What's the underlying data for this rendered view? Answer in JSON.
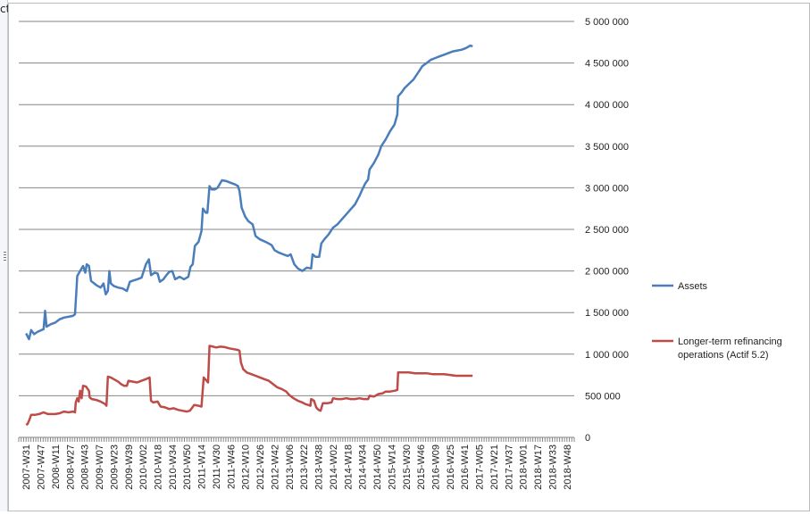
{
  "corner_glyph": "ct",
  "chart_data": {
    "type": "line",
    "title": "",
    "xlabel": "",
    "ylabel": "",
    "ylim": [
      0,
      5000000
    ],
    "yticks": [
      0,
      500000,
      1000000,
      1500000,
      2000000,
      2500000,
      3000000,
      3500000,
      4000000,
      4500000,
      5000000
    ],
    "ytick_labels": [
      "0",
      "500 000",
      "1 000 000",
      "1 500 000",
      "2 000 000",
      "2 500 000",
      "3 000 000",
      "3 500 000",
      "4 000 000",
      "4 500 000",
      "5 000 000"
    ],
    "y_axis_side": "right",
    "grid": "horizontal",
    "legend_position": "right",
    "x_categories": [
      "2007-W31",
      "2007-W47",
      "2008-W11",
      "2008-W27",
      "2008-W43",
      "2009-W07",
      "2009-W23",
      "2009-W39",
      "2010-W02",
      "2010-W18",
      "2010-W34",
      "2010-W50",
      "2011-W14",
      "2011-W30",
      "2011-W46",
      "2012-W10",
      "2012-W26",
      "2012-W42",
      "2013-W06",
      "2013-W22",
      "2013-W38",
      "2014-W02",
      "2014-W18",
      "2014-W34",
      "2014-W50",
      "2015-W14",
      "2015-W30",
      "2015-W46",
      "2016-W09",
      "2016-W25",
      "2016-W41",
      "2017-W05",
      "2017-W21",
      "2017-W37",
      "2018-W01",
      "2018-W17",
      "2018-W33",
      "2018-W48"
    ],
    "series": [
      {
        "name": "Assets",
        "color": "#4a7ebb",
        "points": [
          [
            0,
            1250000
          ],
          [
            0.2,
            1180000
          ],
          [
            0.35,
            1290000
          ],
          [
            0.55,
            1240000
          ],
          [
            0.8,
            1270000
          ],
          [
            1.2,
            1300000
          ],
          [
            1.3,
            1520000
          ],
          [
            1.4,
            1330000
          ],
          [
            1.7,
            1360000
          ],
          [
            2.0,
            1380000
          ],
          [
            2.3,
            1420000
          ],
          [
            2.6,
            1440000
          ],
          [
            2.9,
            1450000
          ],
          [
            3.2,
            1460000
          ],
          [
            3.35,
            1480000
          ],
          [
            3.5,
            1940000
          ],
          [
            3.7,
            2000000
          ],
          [
            3.9,
            2060000
          ],
          [
            4.05,
            1980000
          ],
          [
            4.15,
            2080000
          ],
          [
            4.3,
            2060000
          ],
          [
            4.45,
            1880000
          ],
          [
            4.8,
            1830000
          ],
          [
            5.1,
            1800000
          ],
          [
            5.3,
            1850000
          ],
          [
            5.45,
            1720000
          ],
          [
            5.6,
            1760000
          ],
          [
            5.7,
            2000000
          ],
          [
            5.8,
            1850000
          ],
          [
            6.0,
            1820000
          ],
          [
            6.3,
            1800000
          ],
          [
            6.6,
            1790000
          ],
          [
            6.9,
            1760000
          ],
          [
            7.1,
            1870000
          ],
          [
            7.4,
            1890000
          ],
          [
            7.6,
            1900000
          ],
          [
            7.9,
            1920000
          ],
          [
            8.2,
            2080000
          ],
          [
            8.4,
            2140000
          ],
          [
            8.55,
            1950000
          ],
          [
            8.8,
            1980000
          ],
          [
            9.0,
            1970000
          ],
          [
            9.15,
            1870000
          ],
          [
            9.4,
            1900000
          ],
          [
            9.6,
            1950000
          ],
          [
            9.8,
            1990000
          ],
          [
            10.0,
            2000000
          ],
          [
            10.2,
            1900000
          ],
          [
            10.5,
            1930000
          ],
          [
            10.8,
            1900000
          ],
          [
            11.1,
            1930000
          ],
          [
            11.25,
            2050000
          ],
          [
            11.4,
            2080000
          ],
          [
            11.55,
            2300000
          ],
          [
            11.8,
            2350000
          ],
          [
            12.0,
            2480000
          ],
          [
            12.1,
            2750000
          ],
          [
            12.3,
            2700000
          ],
          [
            12.4,
            2700000
          ],
          [
            12.55,
            3020000
          ],
          [
            12.7,
            2980000
          ],
          [
            12.9,
            2980000
          ],
          [
            13.1,
            3000000
          ],
          [
            13.4,
            3090000
          ],
          [
            13.7,
            3080000
          ],
          [
            14.0,
            3060000
          ],
          [
            14.3,
            3040000
          ],
          [
            14.5,
            3020000
          ],
          [
            14.6,
            2960000
          ],
          [
            14.75,
            2760000
          ],
          [
            15.0,
            2650000
          ],
          [
            15.2,
            2600000
          ],
          [
            15.5,
            2560000
          ],
          [
            15.7,
            2420000
          ],
          [
            16.0,
            2380000
          ],
          [
            16.5,
            2340000
          ],
          [
            16.8,
            2310000
          ],
          [
            17.0,
            2250000
          ],
          [
            17.3,
            2220000
          ],
          [
            17.6,
            2200000
          ],
          [
            17.9,
            2180000
          ],
          [
            18.1,
            2200000
          ],
          [
            18.35,
            2080000
          ],
          [
            18.6,
            2030000
          ],
          [
            18.9,
            2000000
          ],
          [
            19.2,
            2040000
          ],
          [
            19.5,
            2030000
          ],
          [
            19.6,
            2200000
          ],
          [
            19.8,
            2170000
          ],
          [
            20.05,
            2170000
          ],
          [
            20.2,
            2330000
          ],
          [
            20.4,
            2380000
          ],
          [
            20.7,
            2440000
          ],
          [
            21.0,
            2520000
          ],
          [
            21.3,
            2560000
          ],
          [
            21.6,
            2620000
          ],
          [
            21.9,
            2680000
          ],
          [
            22.2,
            2740000
          ],
          [
            22.5,
            2800000
          ],
          [
            22.8,
            2900000
          ],
          [
            23.0,
            2980000
          ],
          [
            23.2,
            3050000
          ],
          [
            23.4,
            3100000
          ],
          [
            23.5,
            3220000
          ],
          [
            23.8,
            3300000
          ],
          [
            24.1,
            3400000
          ],
          [
            24.3,
            3500000
          ],
          [
            24.6,
            3580000
          ],
          [
            24.9,
            3680000
          ],
          [
            25.2,
            3760000
          ],
          [
            25.4,
            3880000
          ],
          [
            25.45,
            4100000
          ],
          [
            25.7,
            4150000
          ],
          [
            25.9,
            4200000
          ],
          [
            26.2,
            4250000
          ],
          [
            26.5,
            4300000
          ],
          [
            26.8,
            4380000
          ],
          [
            27.1,
            4460000
          ],
          [
            27.4,
            4500000
          ],
          [
            27.7,
            4540000
          ],
          [
            28.0,
            4560000
          ],
          [
            28.3,
            4580000
          ],
          [
            28.6,
            4600000
          ],
          [
            28.9,
            4620000
          ],
          [
            29.2,
            4640000
          ],
          [
            29.5,
            4650000
          ],
          [
            29.8,
            4660000
          ],
          [
            30.1,
            4680000
          ],
          [
            30.4,
            4710000
          ],
          [
            30.55,
            4700000
          ]
        ]
      },
      {
        "name": "Longer-term refinancing operations (Actif 5.2)",
        "color": "#be4b48",
        "points": [
          [
            0,
            150000
          ],
          [
            0.1,
            160000
          ],
          [
            0.2,
            200000
          ],
          [
            0.35,
            270000
          ],
          [
            0.6,
            270000
          ],
          [
            0.9,
            280000
          ],
          [
            1.2,
            300000
          ],
          [
            1.5,
            280000
          ],
          [
            2.0,
            280000
          ],
          [
            2.3,
            290000
          ],
          [
            2.6,
            310000
          ],
          [
            2.9,
            300000
          ],
          [
            3.2,
            310000
          ],
          [
            3.35,
            300000
          ],
          [
            3.4,
            420000
          ],
          [
            3.5,
            470000
          ],
          [
            3.6,
            430000
          ],
          [
            3.7,
            560000
          ],
          [
            3.8,
            470000
          ],
          [
            3.9,
            620000
          ],
          [
            4.1,
            610000
          ],
          [
            4.3,
            560000
          ],
          [
            4.35,
            480000
          ],
          [
            4.5,
            460000
          ],
          [
            4.8,
            450000
          ],
          [
            5.1,
            430000
          ],
          [
            5.4,
            400000
          ],
          [
            5.5,
            380000
          ],
          [
            5.6,
            730000
          ],
          [
            5.8,
            720000
          ],
          [
            6.0,
            700000
          ],
          [
            6.3,
            670000
          ],
          [
            6.5,
            640000
          ],
          [
            6.7,
            620000
          ],
          [
            6.9,
            620000
          ],
          [
            7.0,
            680000
          ],
          [
            7.3,
            670000
          ],
          [
            7.6,
            660000
          ],
          [
            7.9,
            680000
          ],
          [
            8.2,
            700000
          ],
          [
            8.45,
            720000
          ],
          [
            8.55,
            440000
          ],
          [
            8.7,
            420000
          ],
          [
            9.0,
            430000
          ],
          [
            9.2,
            370000
          ],
          [
            9.5,
            360000
          ],
          [
            9.8,
            340000
          ],
          [
            10.1,
            350000
          ],
          [
            10.4,
            330000
          ],
          [
            10.7,
            320000
          ],
          [
            11.0,
            310000
          ],
          [
            11.2,
            320000
          ],
          [
            11.3,
            340000
          ],
          [
            11.5,
            390000
          ],
          [
            11.8,
            380000
          ],
          [
            12.0,
            370000
          ],
          [
            12.15,
            720000
          ],
          [
            12.35,
            680000
          ],
          [
            12.45,
            660000
          ],
          [
            12.55,
            1100000
          ],
          [
            12.8,
            1090000
          ],
          [
            13.0,
            1080000
          ],
          [
            13.3,
            1090000
          ],
          [
            13.6,
            1085000
          ],
          [
            13.9,
            1070000
          ],
          [
            14.2,
            1060000
          ],
          [
            14.5,
            1050000
          ],
          [
            14.6,
            1040000
          ],
          [
            14.7,
            900000
          ],
          [
            14.85,
            820000
          ],
          [
            15.1,
            780000
          ],
          [
            15.4,
            760000
          ],
          [
            15.7,
            740000
          ],
          [
            16.0,
            720000
          ],
          [
            16.3,
            700000
          ],
          [
            16.6,
            680000
          ],
          [
            16.9,
            640000
          ],
          [
            17.2,
            600000
          ],
          [
            17.5,
            580000
          ],
          [
            17.8,
            550000
          ],
          [
            18.0,
            510000
          ],
          [
            18.3,
            470000
          ],
          [
            18.6,
            440000
          ],
          [
            18.9,
            420000
          ],
          [
            19.1,
            400000
          ],
          [
            19.3,
            390000
          ],
          [
            19.45,
            380000
          ],
          [
            19.5,
            460000
          ],
          [
            19.7,
            440000
          ],
          [
            19.85,
            360000
          ],
          [
            20.0,
            330000
          ],
          [
            20.15,
            320000
          ],
          [
            20.3,
            410000
          ],
          [
            20.6,
            410000
          ],
          [
            20.9,
            420000
          ],
          [
            21.0,
            470000
          ],
          [
            21.3,
            460000
          ],
          [
            21.6,
            460000
          ],
          [
            21.9,
            470000
          ],
          [
            22.2,
            460000
          ],
          [
            22.5,
            460000
          ],
          [
            22.8,
            470000
          ],
          [
            23.1,
            460000
          ],
          [
            23.4,
            460000
          ],
          [
            23.5,
            500000
          ],
          [
            23.8,
            490000
          ],
          [
            24.1,
            520000
          ],
          [
            24.4,
            530000
          ],
          [
            24.6,
            550000
          ],
          [
            24.9,
            550000
          ],
          [
            25.2,
            560000
          ],
          [
            25.4,
            570000
          ],
          [
            25.45,
            780000
          ],
          [
            25.8,
            780000
          ],
          [
            26.2,
            780000
          ],
          [
            26.6,
            770000
          ],
          [
            27.0,
            770000
          ],
          [
            27.4,
            770000
          ],
          [
            27.8,
            760000
          ],
          [
            28.2,
            760000
          ],
          [
            28.6,
            760000
          ],
          [
            29.0,
            750000
          ],
          [
            29.4,
            740000
          ],
          [
            29.8,
            740000
          ],
          [
            30.2,
            740000
          ],
          [
            30.55,
            740000
          ]
        ]
      }
    ]
  }
}
